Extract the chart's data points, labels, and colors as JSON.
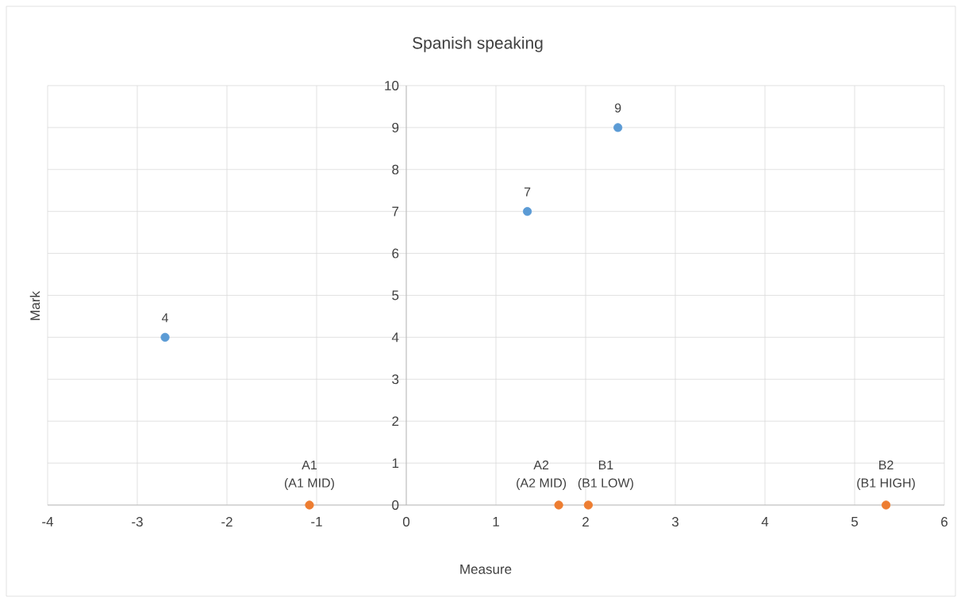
{
  "chart_data": {
    "type": "scatter",
    "title": "Spanish speaking",
    "xlabel": "Measure",
    "ylabel": "Mark",
    "xlim": [
      -4,
      6
    ],
    "xticks": [
      -4,
      -3,
      -2,
      -1,
      0,
      1,
      2,
      3,
      4,
      5,
      6
    ],
    "ylim": [
      0,
      10
    ],
    "yticks": [
      0,
      1,
      2,
      3,
      4,
      5,
      6,
      7,
      8,
      9,
      10
    ],
    "grid": true,
    "series": [
      {
        "color": "#5b9bd5",
        "x": [
          -2.69,
          1.35,
          2.36
        ],
        "values": [
          4,
          7,
          9
        ],
        "value_labels": [
          "4",
          "7",
          "9"
        ]
      },
      {
        "color": "#ed7d31",
        "x": [
          -1.08,
          1.7,
          2.03,
          5.35
        ],
        "values": [
          0,
          0,
          0,
          0
        ],
        "value_labels": [
          "A1",
          "A2",
          "B1",
          "B2"
        ]
      }
    ],
    "annotations": [
      {
        "text": "(A1 MID)",
        "x": -1.08,
        "y": 0
      },
      {
        "text": "(A2 MID)",
        "x": 1.7,
        "y": 0
      },
      {
        "text": "(B1 LOW)",
        "x": 2.03,
        "y": 0
      },
      {
        "text": "(B1 HIGH)",
        "x": 5.35,
        "y": 0
      }
    ]
  }
}
